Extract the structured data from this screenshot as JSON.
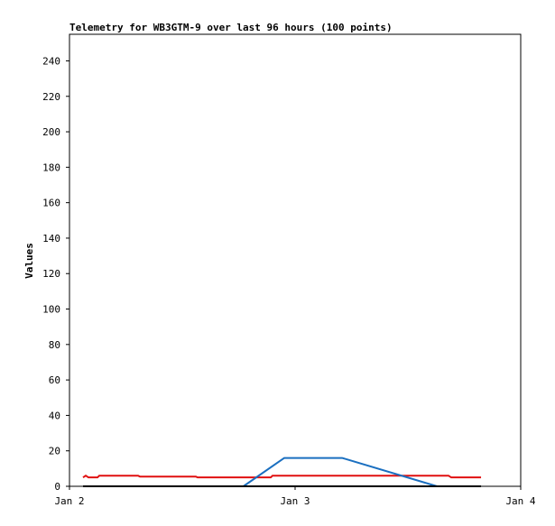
{
  "chart_data": {
    "type": "line",
    "title": "Telemetry for WB3GTM-9 over last 96 hours (100 points)",
    "y_label": "Values",
    "xlim": [
      0,
      48
    ],
    "xticks": [
      {
        "value": 0,
        "label": "Jan 2"
      },
      {
        "value": 24,
        "label": "Jan 3"
      },
      {
        "value": 48,
        "label": "Jan 4"
      }
    ],
    "ylim": [
      0,
      255
    ],
    "yticks": [
      0,
      20,
      40,
      60,
      80,
      100,
      120,
      140,
      160,
      180,
      200,
      220,
      240
    ],
    "series": [
      {
        "color": "#e01010",
        "x": [
          1.44,
          1.73,
          2.02,
          2.98,
          3.17,
          7.3,
          7.49,
          13.44,
          13.63,
          21.41,
          21.6,
          40.32,
          40.61,
          43.78
        ],
        "values": [
          5,
          6,
          5,
          5,
          6,
          6,
          5.5,
          5.5,
          5,
          5,
          6,
          6,
          5,
          5
        ]
      },
      {
        "color": "#1a6fc0",
        "x": [
          18.5,
          22.85,
          29.0,
          39.1
        ],
        "values": [
          0,
          16,
          16,
          0
        ]
      },
      {
        "color": "#000000",
        "x": [
          1.44,
          43.78
        ],
        "values": [
          0,
          0
        ]
      }
    ]
  }
}
